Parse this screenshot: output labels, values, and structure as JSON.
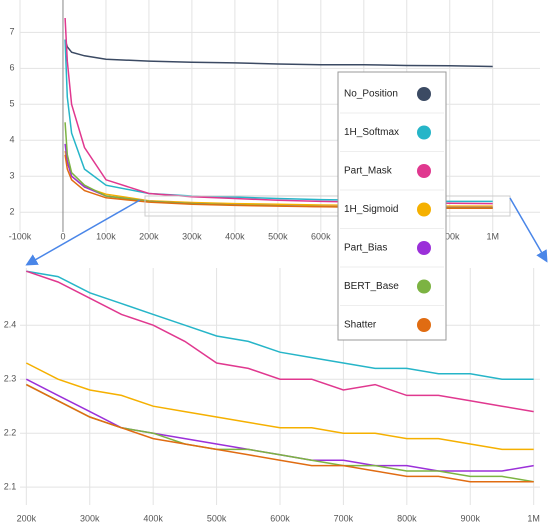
{
  "chart_data": [
    {
      "type": "line",
      "x": [
        5000,
        10000,
        20000,
        50000,
        100000,
        200000,
        300000,
        400000,
        500000,
        600000,
        700000,
        800000,
        900000,
        1000000
      ],
      "series": [
        {
          "name": "No_Position",
          "color": "#3b4a63",
          "values": [
            6.8,
            6.6,
            6.45,
            6.35,
            6.25,
            6.2,
            6.17,
            6.15,
            6.12,
            6.1,
            6.1,
            6.08,
            6.07,
            6.05
          ]
        },
        {
          "name": "1H_Softmax",
          "color": "#26b5c8",
          "values": [
            6.8,
            5.2,
            4.2,
            3.2,
            2.75,
            2.52,
            2.45,
            2.42,
            2.38,
            2.35,
            2.33,
            2.31,
            2.3,
            2.3
          ]
        },
        {
          "name": "Part_Mask",
          "color": "#e0388f",
          "values": [
            7.4,
            6.2,
            5.0,
            3.8,
            2.9,
            2.52,
            2.43,
            2.38,
            2.33,
            2.3,
            2.28,
            2.27,
            2.25,
            2.24
          ]
        },
        {
          "name": "1H_Sigmoid",
          "color": "#f5b000",
          "values": [
            3.7,
            3.4,
            3.0,
            2.7,
            2.5,
            2.32,
            2.27,
            2.24,
            2.22,
            2.2,
            2.19,
            2.18,
            2.17,
            2.17
          ]
        },
        {
          "name": "Part_Bias",
          "color": "#9b30d9",
          "values": [
            3.9,
            3.4,
            3.0,
            2.7,
            2.45,
            2.3,
            2.24,
            2.2,
            2.18,
            2.16,
            2.15,
            2.14,
            2.13,
            2.13
          ]
        },
        {
          "name": "BERT_Base",
          "color": "#7cb342",
          "values": [
            4.5,
            3.6,
            3.1,
            2.75,
            2.45,
            2.3,
            2.24,
            2.2,
            2.18,
            2.16,
            2.14,
            2.13,
            2.12,
            2.12
          ]
        },
        {
          "name": "Shatter",
          "color": "#e06c12",
          "values": [
            3.6,
            3.2,
            2.9,
            2.6,
            2.4,
            2.28,
            2.22,
            2.19,
            2.17,
            2.15,
            2.14,
            2.12,
            2.11,
            2.11
          ]
        }
      ],
      "xlim": [
        -100000,
        1110000
      ],
      "xticks": [
        {
          "value": -100000,
          "label": "-100k"
        },
        0,
        {
          "value": 100000,
          "label": "100k"
        },
        {
          "value": 200000,
          "label": "200k"
        },
        {
          "value": 300000,
          "label": "300k"
        },
        {
          "value": 400000,
          "label": "400k"
        },
        {
          "value": 500000,
          "label": "500k"
        },
        {
          "value": 600000,
          "label": "600k"
        },
        {
          "value": 700000,
          "label": "700k"
        },
        {
          "value": 800000,
          "label": "800k"
        },
        {
          "value": 900000,
          "label": "900k"
        },
        {
          "value": 1000000,
          "label": "1M"
        }
      ],
      "ylim": [
        1.45,
        7.9
      ],
      "yticks": [
        2,
        3,
        4,
        5,
        6,
        7
      ],
      "grid": true
    },
    {
      "type": "line",
      "x": [
        200000,
        250000,
        300000,
        350000,
        400000,
        450000,
        500000,
        550000,
        600000,
        650000,
        700000,
        750000,
        800000,
        850000,
        900000,
        950000,
        1000000
      ],
      "series": [
        {
          "color": "#26b5c8",
          "values": [
            2.5,
            2.49,
            2.46,
            2.44,
            2.42,
            2.4,
            2.38,
            2.37,
            2.35,
            2.34,
            2.33,
            2.32,
            2.32,
            2.31,
            2.31,
            2.3,
            2.3
          ]
        },
        {
          "color": "#e0388f",
          "values": [
            2.5,
            2.48,
            2.45,
            2.42,
            2.4,
            2.37,
            2.33,
            2.32,
            2.3,
            2.3,
            2.28,
            2.29,
            2.27,
            2.27,
            2.26,
            2.25,
            2.24
          ]
        },
        {
          "color": "#f5b000",
          "values": [
            2.33,
            2.3,
            2.28,
            2.27,
            2.25,
            2.24,
            2.23,
            2.22,
            2.21,
            2.21,
            2.2,
            2.2,
            2.19,
            2.19,
            2.18,
            2.17,
            2.17
          ]
        },
        {
          "color": "#9b30d9",
          "values": [
            2.3,
            2.27,
            2.24,
            2.21,
            2.2,
            2.19,
            2.18,
            2.17,
            2.16,
            2.15,
            2.15,
            2.14,
            2.14,
            2.13,
            2.13,
            2.13,
            2.14
          ]
        },
        {
          "color": "#7cb342",
          "values": [
            2.29,
            2.26,
            2.23,
            2.21,
            2.2,
            2.18,
            2.17,
            2.17,
            2.16,
            2.15,
            2.14,
            2.14,
            2.13,
            2.13,
            2.12,
            2.12,
            2.11
          ]
        },
        {
          "color": "#e06c12",
          "values": [
            2.29,
            2.26,
            2.23,
            2.21,
            2.19,
            2.18,
            2.17,
            2.16,
            2.15,
            2.14,
            2.14,
            2.13,
            2.12,
            2.12,
            2.11,
            2.11,
            2.11
          ]
        }
      ],
      "xlim": [
        190000,
        1010000
      ],
      "xticks": [
        {
          "value": 200000,
          "label": "200k"
        },
        {
          "value": 300000,
          "label": "300k"
        },
        {
          "value": 400000,
          "label": "400k"
        },
        {
          "value": 500000,
          "label": "500k"
        },
        {
          "value": 600000,
          "label": "600k"
        },
        {
          "value": 700000,
          "label": "700k"
        },
        {
          "value": 800000,
          "label": "800k"
        },
        {
          "value": 900000,
          "label": "900k"
        },
        {
          "value": 1000000,
          "label": "1M"
        }
      ],
      "ylim": [
        2.067,
        2.506
      ],
      "yticks": [
        2.1,
        2.2,
        2.3,
        2.4
      ],
      "grid": true
    }
  ]
}
